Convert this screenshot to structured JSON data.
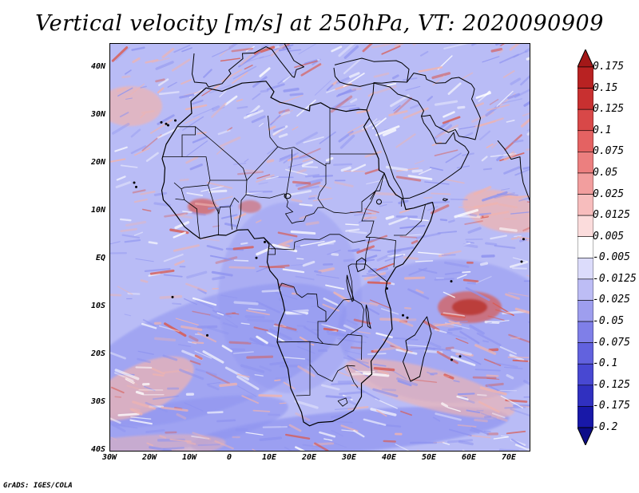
{
  "title": "Vertical velocity [m/s] at 250hPa, VT: 2020090909",
  "lat_labels": [
    "40N",
    "30N",
    "20N",
    "10N",
    "EQ",
    "10S",
    "20S",
    "30S",
    "40S"
  ],
  "lon_labels": [
    "30W",
    "20W",
    "10W",
    "0",
    "10E",
    "20E",
    "30E",
    "40E",
    "50E",
    "60E",
    "70E"
  ],
  "colorbar": {
    "labels": [
      "0.175",
      "0.15",
      "0.125",
      "0.1",
      "0.075",
      "0.05",
      "0.025",
      "0.0125",
      "0.005",
      "-0.005",
      "-0.0125",
      "-0.025",
      "-0.05",
      "-0.075",
      "-0.1",
      "-0.125",
      "-0.175",
      "-0.2"
    ],
    "colors": [
      "#a31818",
      "#b82222",
      "#c83030",
      "#d84848",
      "#e46262",
      "#ec7f7f",
      "#f29e9e",
      "#f7bdbd",
      "#fbdcdc",
      "#ffffff",
      "#dcdcfb",
      "#bdbdf5",
      "#9e9eee",
      "#7f7fe8",
      "#6262de",
      "#4848d2",
      "#3030c0",
      "#1818a8",
      "#0c0c88"
    ]
  },
  "map": {
    "colors": {
      "sea_blue": "#8f94f0",
      "light_blue": "#b9bcf6",
      "pink": "#f0b4b0",
      "red": "#d95b52",
      "dark_red": "#b8312b",
      "coast": "#000000"
    }
  },
  "credit": "GrADS: IGES/COLA"
}
